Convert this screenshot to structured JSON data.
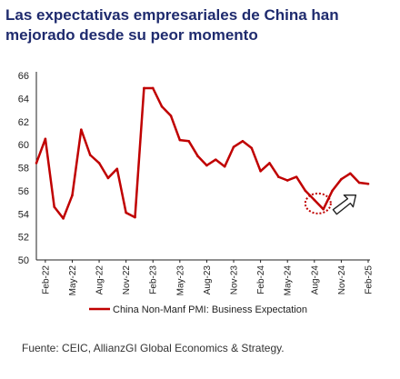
{
  "page": {
    "title": "Las expectativas empresariales de China han mejorado desde su peor momento",
    "source": "Fuente: CEIC, AllianzGI Global Economics & Strategy."
  },
  "chart_data": {
    "type": "line",
    "title": "Las expectativas empresariales de China han mejorado desde su peor momento",
    "xlabel": "",
    "ylabel": "",
    "ylim": [
      50,
      66
    ],
    "yticks": [
      50,
      52,
      54,
      56,
      58,
      60,
      62,
      64,
      66
    ],
    "grid": false,
    "legend_position": "bottom",
    "x_tick_labels": [
      "Feb-22",
      "May-22",
      "Aug-22",
      "Nov-22",
      "Feb-23",
      "May-23",
      "Aug-23",
      "Nov-23",
      "Feb-24",
      "May-24",
      "Aug-24",
      "Nov-24",
      "Feb-25"
    ],
    "x": [
      "Jan-22",
      "Feb-22",
      "Mar-22",
      "Apr-22",
      "May-22",
      "Jun-22",
      "Jul-22",
      "Aug-22",
      "Sep-22",
      "Oct-22",
      "Nov-22",
      "Dec-22",
      "Jan-23",
      "Feb-23",
      "Mar-23",
      "Apr-23",
      "May-23",
      "Jun-23",
      "Jul-23",
      "Aug-23",
      "Sep-23",
      "Oct-23",
      "Nov-23",
      "Dec-23",
      "Jan-24",
      "Feb-24",
      "Mar-24",
      "Apr-24",
      "May-24",
      "Jun-24",
      "Jul-24",
      "Aug-24",
      "Sep-24",
      "Oct-24",
      "Nov-24",
      "Dec-24",
      "Jan-25",
      "Feb-25"
    ],
    "series": [
      {
        "name": "China Non-Manf PMI: Business Expectation",
        "color": "#c00000",
        "values": [
          58.4,
          60.5,
          54.6,
          53.6,
          55.6,
          61.3,
          59.1,
          58.4,
          57.1,
          57.9,
          54.1,
          53.7,
          64.9,
          64.9,
          63.3,
          62.5,
          60.4,
          60.3,
          59.0,
          58.2,
          58.7,
          58.1,
          59.8,
          60.3,
          59.7,
          57.7,
          58.4,
          57.2,
          56.9,
          57.2,
          56.0,
          55.2,
          54.4,
          56.0,
          57.0,
          57.5,
          56.7,
          56.6
        ]
      }
    ],
    "annotations": [
      {
        "type": "dotted-circle",
        "near_x": "Aug-24",
        "color": "#c00000"
      },
      {
        "type": "arrow-up-right",
        "near_x": "Nov-24",
        "color": "#222222"
      }
    ]
  }
}
